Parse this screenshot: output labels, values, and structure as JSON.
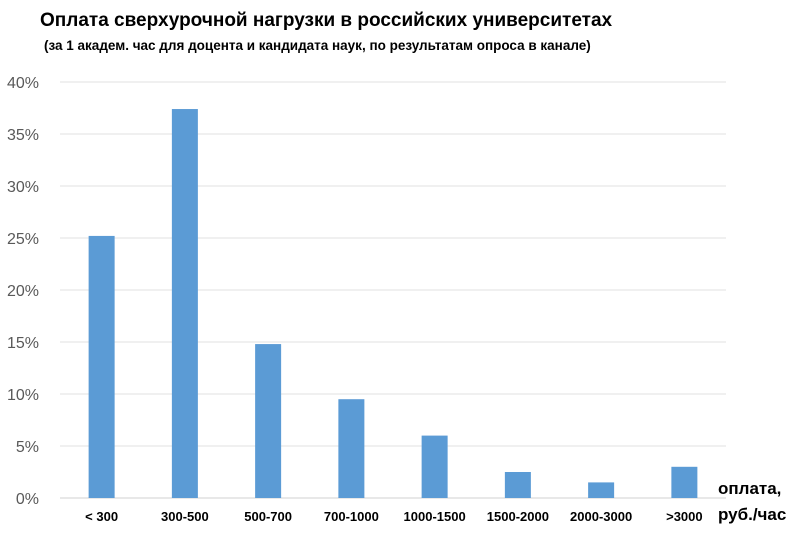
{
  "chart_data": {
    "type": "bar",
    "title": "Оплата сверхурочной нагрузки в российских университетах",
    "subtitle": "(за 1 академ. час для доцента и кандидата наук, по результатам опроса в канале)",
    "xlabel_line1": "оплата,",
    "xlabel_line2": "руб./час",
    "ylabel": "",
    "categories": [
      "< 300",
      "300-500",
      "500-700",
      "700-1000",
      "1000-1500",
      "1500-2000",
      "2000-3000",
      ">3000"
    ],
    "values": [
      25.2,
      37.4,
      14.8,
      9.5,
      6.0,
      2.5,
      1.5,
      3.0
    ],
    "ylim": [
      0,
      40
    ],
    "yticks": [
      0,
      5,
      10,
      15,
      20,
      25,
      30,
      35,
      40
    ],
    "ytick_labels": [
      "0%",
      "5%",
      "10%",
      "15%",
      "20%",
      "25%",
      "30%",
      "35%",
      "40%"
    ],
    "grid": true,
    "legend": "none",
    "bar_color": "#5b9bd5"
  }
}
